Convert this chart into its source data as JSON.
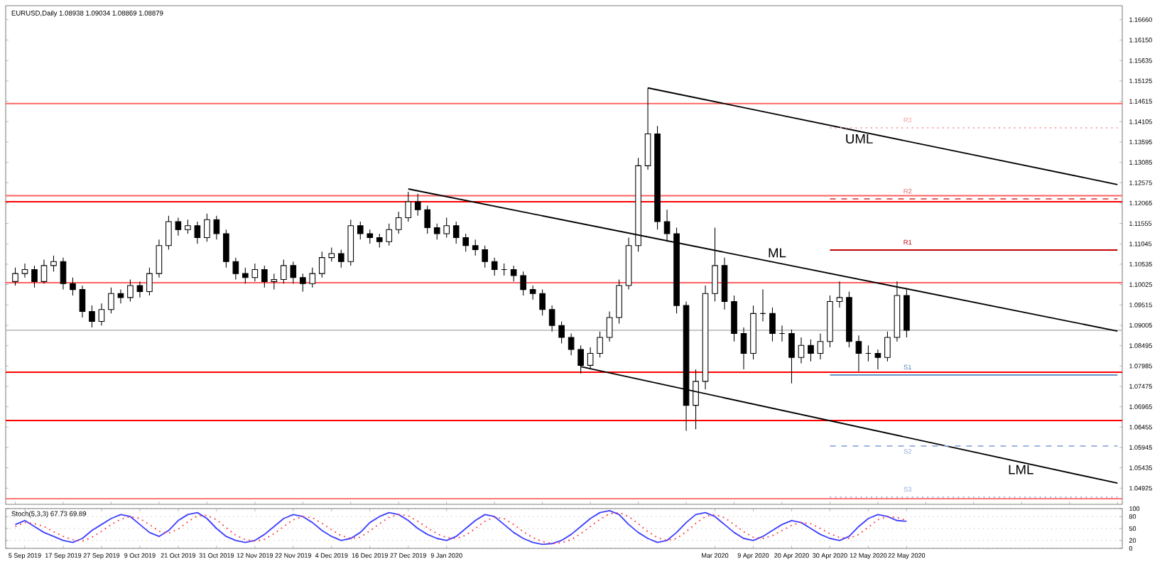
{
  "chart_data": [
    {
      "type": "candlestick",
      "title": "EURUSD,Daily 1.08938 1.09034 1.08869 1.08879",
      "color": "#000000",
      "tick_labels": "y",
      "categories": [
        null,
        null,
        null,
        null,
        null,
        null,
        null,
        null,
        null,
        null,
        null,
        null,
        null,
        null,
        null,
        null,
        null,
        null,
        null,
        null,
        null,
        null,
        null,
        null,
        null,
        null,
        null,
        null,
        null,
        null,
        null,
        null,
        null,
        null,
        null,
        null,
        null,
        null,
        null,
        null,
        null,
        null,
        null,
        null,
        null,
        null,
        null,
        null,
        null,
        null,
        null,
        null,
        null,
        null,
        null,
        null,
        null,
        null,
        null,
        null,
        null,
        null,
        null,
        null,
        null,
        null,
        null,
        null,
        null,
        null,
        null,
        null,
        null,
        null,
        null,
        null,
        null,
        null,
        null,
        null,
        null,
        null,
        null,
        null,
        null,
        null,
        null,
        null,
        null,
        null,
        null,
        null,
        null,
        null,
        null,
        null,
        null,
        null,
        null,
        null,
        null,
        null,
        null,
        null,
        null,
        null,
        null,
        null,
        null,
        null,
        null,
        null,
        null,
        null,
        null,
        null
      ],
      "ohlc": [
        [
          1.101,
          1.1045,
          1.1,
          1.103
        ],
        [
          1.103,
          1.1055,
          1.102,
          1.104
        ],
        [
          1.104,
          1.105,
          1.0995,
          1.101
        ],
        [
          1.101,
          1.1065,
          1.1005,
          1.105
        ],
        [
          1.105,
          1.1075,
          1.1035,
          1.106
        ],
        [
          1.106,
          1.107,
          1.099,
          1.1005
        ],
        [
          1.1005,
          1.102,
          1.0975,
          1.099
        ],
        [
          1.099,
          1.1,
          1.092,
          1.0935
        ],
        [
          1.0935,
          1.095,
          1.0895,
          1.091
        ],
        [
          1.091,
          1.0955,
          1.09,
          1.094
        ],
        [
          1.094,
          1.0995,
          1.093,
          1.098
        ],
        [
          1.098,
          1.099,
          1.0955,
          1.097
        ],
        [
          1.097,
          1.1015,
          1.096,
          1.1
        ],
        [
          1.1,
          1.101,
          1.097,
          1.0985
        ],
        [
          1.0985,
          1.1045,
          1.0975,
          1.103
        ],
        [
          1.103,
          1.1115,
          1.102,
          1.11
        ],
        [
          1.11,
          1.1175,
          1.109,
          1.116
        ],
        [
          1.116,
          1.117,
          1.1125,
          1.114
        ],
        [
          1.114,
          1.1165,
          1.113,
          1.115
        ],
        [
          1.115,
          1.116,
          1.1105,
          1.112
        ],
        [
          1.112,
          1.118,
          1.111,
          1.1165
        ],
        [
          1.1165,
          1.1175,
          1.1115,
          1.113
        ],
        [
          1.113,
          1.114,
          1.1045,
          1.106
        ],
        [
          1.106,
          1.107,
          1.1015,
          1.103
        ],
        [
          1.103,
          1.1045,
          1.1005,
          1.102
        ],
        [
          1.102,
          1.1055,
          1.101,
          1.104
        ],
        [
          1.104,
          1.105,
          1.0995,
          1.101
        ],
        [
          1.101,
          1.103,
          1.099,
          1.1015
        ],
        [
          1.1015,
          1.1065,
          1.1005,
          1.105
        ],
        [
          1.105,
          1.106,
          1.1005,
          1.102
        ],
        [
          1.102,
          1.103,
          1.0985,
          1.1005
        ],
        [
          1.1005,
          1.1045,
          1.0995,
          1.103
        ],
        [
          1.103,
          1.1085,
          1.102,
          1.107
        ],
        [
          1.107,
          1.1095,
          1.106,
          1.108
        ],
        [
          1.108,
          1.109,
          1.1045,
          1.106
        ],
        [
          1.106,
          1.1165,
          1.105,
          1.115
        ],
        [
          1.115,
          1.116,
          1.1115,
          1.113
        ],
        [
          1.113,
          1.114,
          1.1105,
          1.112
        ],
        [
          1.112,
          1.113,
          1.1095,
          1.111
        ],
        [
          1.111,
          1.1155,
          1.11,
          1.114
        ],
        [
          1.114,
          1.1185,
          1.113,
          1.117
        ],
        [
          1.117,
          1.1235,
          1.116,
          1.121
        ],
        [
          1.121,
          1.123,
          1.1175,
          1.119
        ],
        [
          1.119,
          1.12,
          1.113,
          1.1145
        ],
        [
          1.1145,
          1.1155,
          1.1115,
          1.113
        ],
        [
          1.113,
          1.117,
          1.112,
          1.115
        ],
        [
          1.115,
          1.116,
          1.1105,
          1.112
        ],
        [
          1.112,
          1.113,
          1.1085,
          1.11
        ],
        [
          1.11,
          1.1115,
          1.1075,
          1.109
        ],
        [
          1.109,
          1.11,
          1.1045,
          1.106
        ],
        [
          1.106,
          1.107,
          1.1025,
          1.104
        ],
        [
          1.104,
          1.1055,
          1.1025,
          1.104
        ],
        [
          1.104,
          1.105,
          1.101,
          1.1025
        ],
        [
          1.1025,
          1.1035,
          1.0975,
          1.099
        ],
        [
          1.099,
          1.1,
          1.0965,
          1.098
        ],
        [
          1.098,
          1.099,
          1.0925,
          1.094
        ],
        [
          1.094,
          1.095,
          1.0885,
          1.09
        ],
        [
          1.09,
          1.091,
          1.0855,
          1.087
        ],
        [
          1.087,
          1.088,
          1.0825,
          1.084
        ],
        [
          1.084,
          1.085,
          1.078,
          1.08
        ],
        [
          1.08,
          1.0845,
          1.079,
          1.083
        ],
        [
          1.083,
          1.0885,
          1.082,
          1.087
        ],
        [
          1.087,
          1.0935,
          1.086,
          1.092
        ],
        [
          1.092,
          1.1015,
          1.0905,
          1.1
        ],
        [
          1.1,
          1.112,
          1.099,
          1.11
        ],
        [
          1.11,
          1.132,
          1.1085,
          1.13
        ],
        [
          1.13,
          1.1495,
          1.129,
          1.138
        ],
        [
          1.138,
          1.14,
          1.114,
          1.116
        ],
        [
          1.116,
          1.119,
          1.111,
          1.113
        ],
        [
          1.113,
          1.1145,
          1.093,
          1.095
        ],
        [
          1.095,
          1.096,
          1.0636,
          1.07
        ],
        [
          1.07,
          1.079,
          1.064,
          1.076
        ],
        [
          1.076,
          1.1,
          1.074,
          1.098
        ],
        [
          1.098,
          1.1145,
          1.096,
          1.105
        ],
        [
          1.105,
          1.107,
          1.094,
          1.096
        ],
        [
          1.096,
          1.0975,
          1.086,
          1.088
        ],
        [
          1.088,
          1.0895,
          1.079,
          1.083
        ],
        [
          1.083,
          1.095,
          1.0815,
          1.093
        ],
        [
          1.093,
          1.099,
          1.091,
          1.093
        ],
        [
          1.093,
          1.0945,
          1.086,
          1.088
        ],
        [
          1.088,
          1.09,
          1.086,
          1.088
        ],
        [
          1.088,
          1.089,
          1.0755,
          1.082
        ],
        [
          1.082,
          1.087,
          1.0805,
          1.085
        ],
        [
          1.085,
          1.0865,
          1.081,
          1.083
        ],
        [
          1.083,
          1.088,
          1.0815,
          1.086
        ],
        [
          1.086,
          1.0975,
          1.0845,
          1.096
        ],
        [
          1.096,
          1.101,
          1.0945,
          1.097
        ],
        [
          1.097,
          1.0985,
          1.0845,
          1.086
        ],
        [
          1.086,
          1.0875,
          1.0785,
          1.083
        ],
        [
          1.083,
          1.085,
          1.081,
          1.083
        ],
        [
          1.083,
          1.084,
          1.079,
          1.082
        ],
        [
          1.082,
          1.0885,
          1.081,
          1.087
        ],
        [
          1.087,
          1.101,
          1.086,
          1.0975
        ],
        [
          1.0975,
          1.099,
          1.087,
          1.0888
        ],
        null,
        null,
        null,
        null,
        null,
        null,
        null,
        null,
        null,
        null,
        null,
        null,
        null,
        null,
        null,
        null,
        null,
        null,
        null,
        null,
        null,
        null
      ],
      "series": [
        {
          "type": "line",
          "name": "UML",
          "color": "#000000",
          "line_style": "solid",
          "values": [
            null,
            null,
            null,
            null,
            null,
            null,
            null,
            null,
            null,
            null,
            null,
            null,
            null,
            null,
            null,
            null,
            null,
            null,
            null,
            null,
            null,
            null,
            null,
            null,
            null,
            null,
            null,
            null,
            null,
            null,
            null,
            null,
            null,
            null,
            null,
            null,
            null,
            null,
            null,
            null,
            null,
            null,
            null,
            null,
            null,
            null,
            null,
            null,
            null,
            null,
            null,
            null,
            null,
            null,
            null,
            null,
            null,
            null,
            null,
            null,
            null,
            null,
            null,
            null,
            null,
            null,
            1.1495,
            null,
            null,
            null,
            null,
            null,
            null,
            null,
            null,
            null,
            null,
            null,
            null,
            null,
            null,
            null,
            null,
            null,
            null,
            null,
            null,
            null,
            null,
            null,
            null,
            null,
            null,
            null,
            null,
            null,
            null,
            null,
            null,
            null,
            null,
            null,
            null,
            null,
            null,
            null,
            null,
            null,
            null,
            null,
            null,
            null,
            null,
            null,
            null,
            1.1253
          ]
        },
        {
          "type": "line",
          "name": "ML",
          "color": "#000000",
          "line_style": "solid",
          "values": [
            null,
            null,
            null,
            null,
            null,
            null,
            null,
            null,
            null,
            null,
            null,
            null,
            null,
            null,
            null,
            null,
            null,
            null,
            null,
            null,
            null,
            null,
            null,
            null,
            null,
            null,
            null,
            null,
            null,
            null,
            null,
            null,
            null,
            null,
            null,
            null,
            null,
            null,
            null,
            null,
            null,
            1.1242,
            null,
            null,
            null,
            null,
            null,
            null,
            null,
            null,
            null,
            null,
            null,
            null,
            null,
            null,
            null,
            null,
            null,
            null,
            null,
            null,
            null,
            null,
            null,
            null,
            null,
            null,
            null,
            null,
            null,
            null,
            null,
            null,
            null,
            null,
            null,
            null,
            null,
            null,
            null,
            null,
            null,
            null,
            null,
            null,
            null,
            null,
            null,
            null,
            null,
            null,
            null,
            null,
            null,
            null,
            null,
            null,
            null,
            null,
            null,
            null,
            null,
            null,
            null,
            null,
            null,
            null,
            null,
            null,
            null,
            null,
            null,
            null,
            null,
            1.0886
          ]
        },
        {
          "type": "line",
          "name": "LML",
          "color": "#000000",
          "line_style": "solid",
          "values": [
            null,
            null,
            null,
            null,
            null,
            null,
            null,
            null,
            null,
            null,
            null,
            null,
            null,
            null,
            null,
            null,
            null,
            null,
            null,
            null,
            null,
            null,
            null,
            null,
            null,
            null,
            null,
            null,
            null,
            null,
            null,
            null,
            null,
            null,
            null,
            null,
            null,
            null,
            null,
            null,
            null,
            null,
            null,
            null,
            null,
            null,
            null,
            null,
            null,
            null,
            null,
            null,
            null,
            null,
            null,
            null,
            null,
            null,
            null,
            1.0797,
            null,
            null,
            null,
            null,
            null,
            null,
            null,
            null,
            null,
            null,
            null,
            null,
            null,
            null,
            null,
            null,
            null,
            null,
            null,
            null,
            null,
            null,
            null,
            null,
            null,
            null,
            null,
            null,
            null,
            null,
            null,
            null,
            null,
            null,
            null,
            null,
            null,
            null,
            null,
            null,
            null,
            null,
            null,
            null,
            null,
            null,
            null,
            null,
            null,
            null,
            null,
            null,
            null,
            null,
            null,
            1.0505
          ]
        },
        {
          "type": "line",
          "name": "R3",
          "color": "#f4a0a0",
          "line_style": "dotted",
          "values": [
            null,
            null,
            null,
            null,
            null,
            null,
            null,
            null,
            null,
            null,
            null,
            null,
            null,
            null,
            null,
            null,
            null,
            null,
            null,
            null,
            null,
            null,
            null,
            null,
            null,
            null,
            null,
            null,
            null,
            null,
            null,
            null,
            null,
            null,
            null,
            null,
            null,
            null,
            null,
            null,
            null,
            null,
            null,
            null,
            null,
            null,
            null,
            null,
            null,
            null,
            null,
            null,
            null,
            null,
            null,
            null,
            null,
            null,
            null,
            null,
            null,
            null,
            null,
            null,
            null,
            null,
            null,
            null,
            null,
            null,
            null,
            null,
            null,
            null,
            null,
            null,
            null,
            null,
            null,
            null,
            null,
            null,
            null,
            null,
            null,
            1.1395,
            null,
            null,
            null,
            null,
            null,
            null,
            null,
            null,
            null,
            null,
            null,
            null,
            null,
            null,
            null,
            null,
            null,
            null,
            null,
            null,
            null,
            null,
            null,
            null,
            null,
            null,
            null,
            null,
            null,
            1.1395
          ]
        },
        {
          "type": "line",
          "name": "R2",
          "color": "#e06060",
          "line_style": "dashed",
          "values": [
            null,
            null,
            null,
            null,
            null,
            null,
            null,
            null,
            null,
            null,
            null,
            null,
            null,
            null,
            null,
            null,
            null,
            null,
            null,
            null,
            null,
            null,
            null,
            null,
            null,
            null,
            null,
            null,
            null,
            null,
            null,
            null,
            null,
            null,
            null,
            null,
            null,
            null,
            null,
            null,
            null,
            null,
            null,
            null,
            null,
            null,
            null,
            null,
            null,
            null,
            null,
            null,
            null,
            null,
            null,
            null,
            null,
            null,
            null,
            null,
            null,
            null,
            null,
            null,
            null,
            null,
            null,
            null,
            null,
            null,
            null,
            null,
            null,
            null,
            null,
            null,
            null,
            null,
            null,
            null,
            null,
            null,
            null,
            null,
            null,
            1.1217,
            null,
            null,
            null,
            null,
            null,
            null,
            null,
            null,
            null,
            null,
            null,
            null,
            null,
            null,
            null,
            null,
            null,
            null,
            null,
            null,
            null,
            null,
            null,
            null,
            null,
            null,
            null,
            null,
            null,
            1.1217
          ]
        },
        {
          "type": "line",
          "name": "R1",
          "color": "#c00000",
          "line_style": "solid",
          "values": [
            null,
            null,
            null,
            null,
            null,
            null,
            null,
            null,
            null,
            null,
            null,
            null,
            null,
            null,
            null,
            null,
            null,
            null,
            null,
            null,
            null,
            null,
            null,
            null,
            null,
            null,
            null,
            null,
            null,
            null,
            null,
            null,
            null,
            null,
            null,
            null,
            null,
            null,
            null,
            null,
            null,
            null,
            null,
            null,
            null,
            null,
            null,
            null,
            null,
            null,
            null,
            null,
            null,
            null,
            null,
            null,
            null,
            null,
            null,
            null,
            null,
            null,
            null,
            null,
            null,
            null,
            null,
            null,
            null,
            null,
            null,
            null,
            null,
            null,
            null,
            null,
            null,
            null,
            null,
            null,
            null,
            null,
            null,
            null,
            null,
            1.1089,
            null,
            null,
            null,
            null,
            null,
            null,
            null,
            null,
            null,
            null,
            null,
            null,
            null,
            null,
            null,
            null,
            null,
            null,
            null,
            null,
            null,
            null,
            null,
            null,
            null,
            null,
            null,
            null,
            null,
            1.1089
          ]
        },
        {
          "type": "line",
          "name": "S1",
          "color": "#4f81bd",
          "line_style": "solid",
          "values": [
            null,
            null,
            null,
            null,
            null,
            null,
            null,
            null,
            null,
            null,
            null,
            null,
            null,
            null,
            null,
            null,
            null,
            null,
            null,
            null,
            null,
            null,
            null,
            null,
            null,
            null,
            null,
            null,
            null,
            null,
            null,
            null,
            null,
            null,
            null,
            null,
            null,
            null,
            null,
            null,
            null,
            null,
            null,
            null,
            null,
            null,
            null,
            null,
            null,
            null,
            null,
            null,
            null,
            null,
            null,
            null,
            null,
            null,
            null,
            null,
            null,
            null,
            null,
            null,
            null,
            null,
            null,
            null,
            null,
            null,
            null,
            null,
            null,
            null,
            null,
            null,
            null,
            null,
            null,
            null,
            null,
            null,
            null,
            null,
            null,
            1.0776,
            null,
            null,
            null,
            null,
            null,
            null,
            null,
            null,
            null,
            null,
            null,
            null,
            null,
            null,
            null,
            null,
            null,
            null,
            null,
            null,
            null,
            null,
            null,
            null,
            null,
            null,
            null,
            null,
            null,
            1.0776
          ]
        },
        {
          "type": "line",
          "name": "S2",
          "color": "#8eaadb",
          "line_style": "dashed",
          "values": [
            null,
            null,
            null,
            null,
            null,
            null,
            null,
            null,
            null,
            null,
            null,
            null,
            null,
            null,
            null,
            null,
            null,
            null,
            null,
            null,
            null,
            null,
            null,
            null,
            null,
            null,
            null,
            null,
            null,
            null,
            null,
            null,
            null,
            null,
            null,
            null,
            null,
            null,
            null,
            null,
            null,
            null,
            null,
            null,
            null,
            null,
            null,
            null,
            null,
            null,
            null,
            null,
            null,
            null,
            null,
            null,
            null,
            null,
            null,
            null,
            null,
            null,
            null,
            null,
            null,
            null,
            null,
            null,
            null,
            null,
            null,
            null,
            null,
            null,
            null,
            null,
            null,
            null,
            null,
            null,
            null,
            null,
            null,
            null,
            null,
            1.0598,
            null,
            null,
            null,
            null,
            null,
            null,
            null,
            null,
            null,
            null,
            null,
            null,
            null,
            null,
            null,
            null,
            null,
            null,
            null,
            null,
            null,
            null,
            null,
            null,
            null,
            null,
            null,
            null,
            null,
            1.0598
          ]
        },
        {
          "type": "line",
          "name": "S3",
          "color": "#8eaadb",
          "line_style": "dotted",
          "values": [
            null,
            null,
            null,
            null,
            null,
            null,
            null,
            null,
            null,
            null,
            null,
            null,
            null,
            null,
            null,
            null,
            null,
            null,
            null,
            null,
            null,
            null,
            null,
            null,
            null,
            null,
            null,
            null,
            null,
            null,
            null,
            null,
            null,
            null,
            null,
            null,
            null,
            null,
            null,
            null,
            null,
            null,
            null,
            null,
            null,
            null,
            null,
            null,
            null,
            null,
            null,
            null,
            null,
            null,
            null,
            null,
            null,
            null,
            null,
            null,
            null,
            null,
            null,
            null,
            null,
            null,
            null,
            null,
            null,
            null,
            null,
            null,
            null,
            null,
            null,
            null,
            null,
            null,
            null,
            null,
            null,
            null,
            null,
            null,
            null,
            1.047,
            null,
            null,
            null,
            null,
            null,
            null,
            null,
            null,
            null,
            null,
            null,
            null,
            null,
            null,
            null,
            null,
            null,
            null,
            null,
            null,
            null,
            null,
            null,
            null,
            null,
            null,
            null,
            null,
            null,
            1.047
          ]
        }
      ],
      "ylim": [
        1.0452,
        1.1701
      ],
      "yticks": [
        {
          "value": 1.1666,
          "label": "1.16660"
        },
        {
          "value": 1.1615,
          "label": "1.16150"
        },
        {
          "value": 1.15635,
          "label": "1.15635"
        },
        {
          "value": 1.15125,
          "label": "1.15125"
        },
        {
          "value": 1.14615,
          "label": "1.14615"
        },
        {
          "value": 1.14105,
          "label": "1.14105"
        },
        {
          "value": 1.13595,
          "label": "1.13595"
        },
        {
          "value": 1.13085,
          "label": "1.13085"
        },
        {
          "value": 1.12575,
          "label": "1.12575"
        },
        {
          "value": 1.12065,
          "label": "1.12065"
        },
        {
          "value": 1.11555,
          "label": "1.11555"
        },
        {
          "value": 1.11045,
          "label": "1.11045"
        },
        {
          "value": 1.10535,
          "label": "1.10535"
        },
        {
          "value": 1.10025,
          "label": "1.10025"
        },
        {
          "value": 1.09515,
          "label": "1.09515"
        },
        {
          "value": 1.09005,
          "label": "1.09005"
        },
        {
          "value": 1.08495,
          "label": "1.08495"
        },
        {
          "value": 1.07985,
          "label": "1.07985"
        },
        {
          "value": 1.07475,
          "label": "1.07475"
        },
        {
          "value": 1.06965,
          "label": "1.06965"
        },
        {
          "value": 1.06455,
          "label": "1.06455"
        },
        {
          "value": 1.05945,
          "label": "1.05945"
        },
        {
          "value": 1.05435,
          "label": "1.05435"
        },
        {
          "value": 1.04925,
          "label": "1.04925"
        }
      ],
      "ref_lines": [
        {
          "axis": "y",
          "value": 1.1456,
          "color": "#ff6060"
        },
        {
          "axis": "y",
          "value": 1.1225,
          "color": "#ff6060"
        },
        {
          "axis": "y",
          "value": 1.121,
          "color": "#ff0000"
        },
        {
          "axis": "y",
          "value": 1.1007,
          "color": "#ff6060"
        },
        {
          "axis": "y",
          "value": 1.0888,
          "color": "#c0c0c0"
        },
        {
          "axis": "y",
          "value": 1.0783,
          "color": "#ff0000"
        },
        {
          "axis": "y",
          "value": 1.0662,
          "color": "#ff0000"
        },
        {
          "axis": "y",
          "value": 1.0466,
          "color": "#ff6060"
        }
      ]
    },
    {
      "type": "line",
      "title": "Stoch(5,3,3) 67.73 69.89",
      "grid": "y",
      "categories": [
        null,
        "5 Sep 2019",
        null,
        null,
        null,
        "17 Sep 2019",
        null,
        null,
        null,
        "27 Sep 2019",
        null,
        null,
        null,
        "9 Oct 2019",
        null,
        null,
        null,
        "21 Oct 2019",
        null,
        null,
        null,
        "31 Oct 2019",
        null,
        null,
        null,
        "12 Nov 2019",
        null,
        null,
        null,
        "22 Nov 2019",
        null,
        null,
        null,
        "4 Dec 2019",
        null,
        null,
        null,
        "16 Dec 2019",
        null,
        null,
        null,
        "27 Dec 2019",
        null,
        null,
        null,
        "9 Jan 2020",
        null,
        null,
        null,
        null,
        null,
        null,
        null,
        null,
        null,
        null,
        null,
        null,
        null,
        null,
        null,
        null,
        null,
        null,
        null,
        null,
        null,
        null,
        null,
        null,
        null,
        null,
        null,
        "Mar 2020",
        null,
        null,
        null,
        "9 Apr 2020",
        null,
        null,
        null,
        "20 Apr 2020",
        null,
        null,
        null,
        "30 Apr 2020",
        null,
        null,
        null,
        "12 May 2020",
        null,
        null,
        null,
        "22 May 2020",
        null,
        null,
        null,
        null,
        null,
        null,
        null,
        null,
        null,
        null,
        null,
        null,
        null,
        null,
        null,
        null,
        null,
        null,
        null,
        null,
        null,
        null
      ],
      "series": [
        {
          "color": "#4040ff",
          "line_style": "solid",
          "values": [
            60,
            70,
            55,
            40,
            30,
            20,
            15,
            25,
            45,
            60,
            75,
            85,
            80,
            60,
            40,
            30,
            45,
            70,
            85,
            90,
            75,
            50,
            30,
            20,
            15,
            20,
            35,
            55,
            75,
            85,
            80,
            65,
            45,
            30,
            20,
            25,
            40,
            65,
            80,
            90,
            85,
            70,
            50,
            35,
            25,
            20,
            30,
            50,
            70,
            85,
            80,
            60,
            40,
            25,
            15,
            10,
            12,
            20,
            35,
            55,
            75,
            90,
            95,
            85,
            60,
            40,
            25,
            15,
            20,
            40,
            65,
            85,
            90,
            80,
            60,
            40,
            25,
            20,
            30,
            45,
            60,
            70,
            65,
            50,
            35,
            25,
            20,
            30,
            55,
            75,
            85,
            80,
            70,
            68,
            null,
            null,
            null,
            null,
            null,
            null,
            null,
            null,
            null,
            null,
            null,
            null,
            null,
            null,
            null,
            null,
            null,
            null,
            null,
            null,
            null,
            null
          ]
        },
        {
          "color": "#ff4040",
          "line_style": "dotted",
          "values": [
            55,
            65,
            62,
            55,
            42,
            30,
            22,
            18,
            28,
            43,
            60,
            73,
            80,
            75,
            60,
            43,
            38,
            48,
            67,
            82,
            83,
            72,
            52,
            33,
            22,
            18,
            23,
            37,
            55,
            72,
            80,
            77,
            63,
            47,
            32,
            25,
            28,
            44,
            62,
            78,
            85,
            82,
            68,
            52,
            37,
            27,
            25,
            33,
            50,
            68,
            78,
            75,
            60,
            42,
            27,
            17,
            12,
            14,
            22,
            37,
            55,
            73,
            87,
            90,
            80,
            62,
            42,
            27,
            20,
            25,
            42,
            63,
            80,
            85,
            77,
            60,
            42,
            28,
            25,
            32,
            45,
            58,
            65,
            62,
            50,
            37,
            27,
            25,
            35,
            53,
            72,
            80,
            78,
            70,
            null,
            null,
            null,
            null,
            null,
            null,
            null,
            null,
            null,
            null,
            null,
            null,
            null,
            null,
            null,
            null,
            null,
            null,
            null,
            null,
            null,
            null
          ]
        }
      ],
      "ylim": [
        0,
        100
      ],
      "yticks": [
        0,
        20,
        50,
        80,
        100
      ]
    }
  ]
}
